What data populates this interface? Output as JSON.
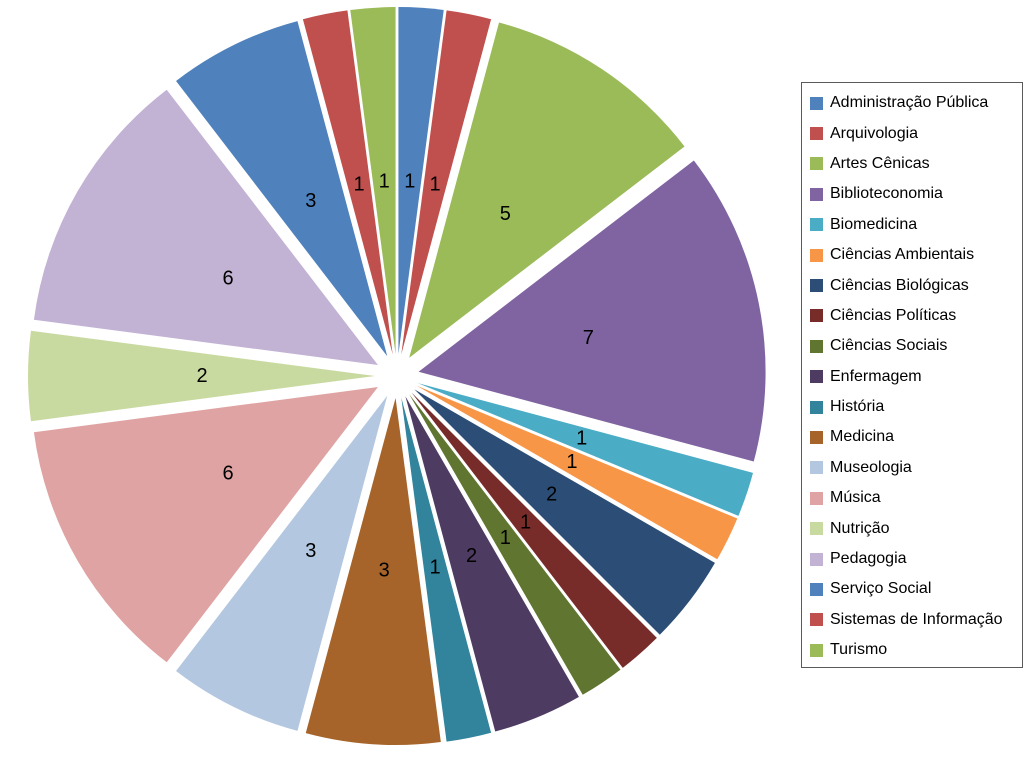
{
  "background_color": "#FFFFFF",
  "text_color": "#000000",
  "legend_border_color": "#5A5A5A",
  "chart_data": {
    "type": "pie",
    "title": "",
    "exploded": true,
    "direction": "clockwise",
    "start_angle_deg": 0,
    "legend_position": "right",
    "data_labels": "values",
    "total": 48,
    "categories": [
      "Administração Pública",
      "Arquivologia",
      "Artes Cênicas",
      "Biblioteconomia",
      "Biomedicina",
      "Ciências Ambientais",
      "Ciências Biológicas",
      "Ciências Políticas",
      "Ciências Sociais",
      "Enfermagem",
      "História",
      "Medicina",
      "Museologia",
      "Música",
      "Nutrição",
      "Pedagogia",
      "Serviço Social",
      "Sistemas de Informação",
      "Turismo"
    ],
    "values": [
      1,
      1,
      5,
      7,
      1,
      1,
      2,
      1,
      1,
      2,
      1,
      3,
      3,
      6,
      2,
      6,
      3,
      1,
      1
    ],
    "colors": [
      "#4F81BD",
      "#C0504D",
      "#9BBB59",
      "#8064A2",
      "#4BACC6",
      "#F79646",
      "#2C4D75",
      "#772C2A",
      "#5F7530",
      "#4D3B62",
      "#31849B",
      "#A6642A",
      "#B3C7E0",
      "#E0A3A3",
      "#C9DAA1",
      "#C2B2D4",
      "#4F81BD",
      "#C0504D",
      "#9BBB59"
    ]
  }
}
